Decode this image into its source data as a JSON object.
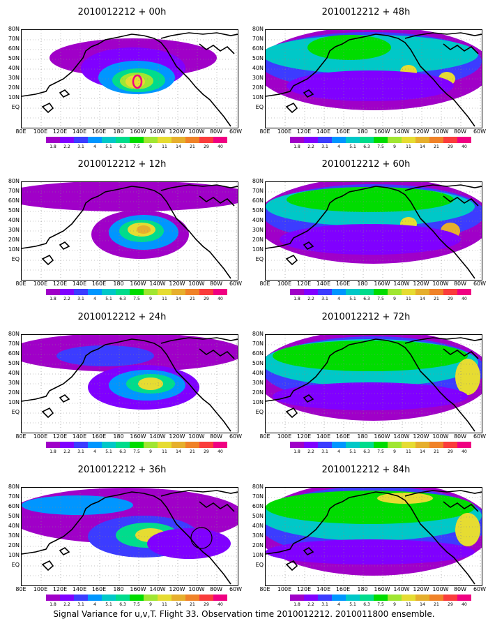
{
  "caption": "Signal Variance for u,v,T. Flight 33. Observation time 2010012212. 2010011800 ensemble.",
  "lat_labels": [
    "80N",
    "70N",
    "60N",
    "50N",
    "40N",
    "30N",
    "20N",
    "10N",
    "EQ"
  ],
  "lon_labels": [
    "80E",
    "100E",
    "120E",
    "140E",
    "160E",
    "180",
    "160W",
    "140W",
    "120W",
    "100W",
    "80W",
    "60W"
  ],
  "colorbar": {
    "labels": [
      "1.8",
      "2.2",
      "3.1",
      "4",
      "5.1",
      "6.3",
      "7.5",
      "9",
      "11",
      "14",
      "21",
      "29",
      "40"
    ],
    "colors": [
      "#a000c8",
      "#8000ff",
      "#3c3cff",
      "#0096ff",
      "#00c8c8",
      "#00dc8c",
      "#00dc00",
      "#a0e632",
      "#e6dc32",
      "#e6af2d",
      "#f08228",
      "#fa3c3c",
      "#f00082"
    ]
  },
  "panels": [
    {
      "title": "2010012212 + 00h"
    },
    {
      "title": "2010012212 + 48h"
    },
    {
      "title": "2010012212 + 12h"
    },
    {
      "title": "2010012212 + 60h"
    },
    {
      "title": "2010012212 + 24h"
    },
    {
      "title": "2010012212 + 72h"
    },
    {
      "title": "2010012212 + 36h"
    },
    {
      "title": "2010012212 + 84h"
    }
  ]
}
